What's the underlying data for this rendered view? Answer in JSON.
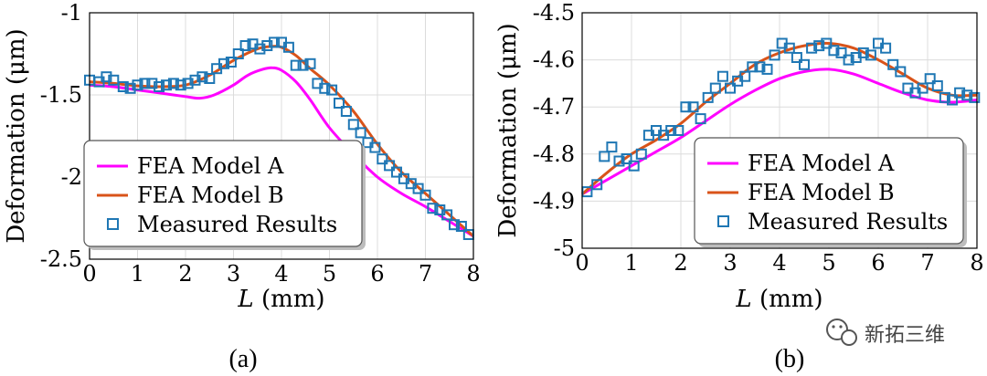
{
  "chart_data": [
    {
      "type": "line",
      "caption": "(a)",
      "xlabel_var": "L",
      "xlabel_unit": " (mm)",
      "ylabel": "Deformation (μm)",
      "xlim": [
        0,
        8
      ],
      "ylim": [
        -2.5,
        -1
      ],
      "x_ticks": [
        0,
        1,
        2,
        3,
        4,
        5,
        6,
        7,
        8
      ],
      "y_ticks": [
        -2.5,
        -2,
        -1.5,
        -1
      ],
      "y_tick_labels": [
        "-2.5",
        "-2",
        "-1.5",
        "-1"
      ],
      "grid": true,
      "legend_position": "lower-left",
      "series": [
        {
          "name": "FEA Model A",
          "kind": "line",
          "color": "#ff00ff",
          "x": [
            0,
            0.5,
            1,
            1.5,
            2,
            2.3,
            2.6,
            3,
            3.3,
            3.6,
            3.8,
            4.0,
            4.3,
            4.6,
            5,
            5.5,
            6,
            6.5,
            7,
            7.5,
            8
          ],
          "y": [
            -1.44,
            -1.45,
            -1.47,
            -1.49,
            -1.51,
            -1.52,
            -1.5,
            -1.44,
            -1.38,
            -1.345,
            -1.335,
            -1.35,
            -1.42,
            -1.53,
            -1.7,
            -1.86,
            -2.0,
            -2.1,
            -2.18,
            -2.27,
            -2.36
          ]
        },
        {
          "name": "FEA Model B",
          "kind": "line",
          "color": "#d95319",
          "x": [
            0,
            0.5,
            1,
            1.5,
            2,
            2.5,
            3,
            3.5,
            3.8,
            4.0,
            4.3,
            4.6,
            5,
            5.5,
            6,
            6.5,
            7,
            7.5,
            8
          ],
          "y": [
            -1.42,
            -1.43,
            -1.445,
            -1.45,
            -1.44,
            -1.38,
            -1.29,
            -1.22,
            -1.205,
            -1.21,
            -1.26,
            -1.34,
            -1.44,
            -1.6,
            -1.8,
            -1.97,
            -2.1,
            -2.23,
            -2.36
          ]
        },
        {
          "name": "Measured Results",
          "kind": "scatter",
          "color": "#1f77b4",
          "x": [
            0,
            0.2,
            0.35,
            0.5,
            0.7,
            0.85,
            1.0,
            1.15,
            1.3,
            1.45,
            1.6,
            1.75,
            1.9,
            2.05,
            2.2,
            2.35,
            2.5,
            2.65,
            2.8,
            2.95,
            3.1,
            3.25,
            3.4,
            3.55,
            3.7,
            3.85,
            4.0,
            4.15,
            4.3,
            4.45,
            4.6,
            4.75,
            4.9,
            5.05,
            5.2,
            5.35,
            5.5,
            5.65,
            5.8,
            5.95,
            6.1,
            6.25,
            6.4,
            6.55,
            6.7,
            6.85,
            7.0,
            7.15,
            7.3,
            7.45,
            7.6,
            7.75,
            7.9
          ],
          "y": [
            -1.41,
            -1.42,
            -1.39,
            -1.41,
            -1.45,
            -1.46,
            -1.44,
            -1.43,
            -1.43,
            -1.45,
            -1.44,
            -1.43,
            -1.44,
            -1.43,
            -1.41,
            -1.39,
            -1.4,
            -1.34,
            -1.31,
            -1.3,
            -1.25,
            -1.2,
            -1.19,
            -1.22,
            -1.2,
            -1.18,
            -1.18,
            -1.21,
            -1.32,
            -1.32,
            -1.31,
            -1.43,
            -1.46,
            -1.47,
            -1.55,
            -1.6,
            -1.68,
            -1.73,
            -1.79,
            -1.82,
            -1.89,
            -1.93,
            -1.97,
            -2.01,
            -2.04,
            -2.07,
            -2.11,
            -2.19,
            -2.2,
            -2.23,
            -2.29,
            -2.3,
            -2.35
          ]
        }
      ]
    },
    {
      "type": "line",
      "caption": "(b)",
      "xlabel_var": "L",
      "xlabel_unit": " (mm)",
      "ylabel": "Deformation (μm)",
      "xlim": [
        0,
        8
      ],
      "ylim": [
        -5,
        -4.5
      ],
      "x_ticks": [
        0,
        1,
        2,
        3,
        4,
        5,
        6,
        7,
        8
      ],
      "y_ticks": [
        -5,
        -4.9,
        -4.8,
        -4.7,
        -4.6,
        -4.5
      ],
      "y_tick_labels": [
        "-5",
        "-4.9",
        "-4.8",
        "-4.7",
        "-4.6",
        "-4.5"
      ],
      "grid": true,
      "legend_position": "lower-right",
      "series": [
        {
          "name": "FEA Model A",
          "kind": "line",
          "color": "#ff00ff",
          "x": [
            0,
            0.5,
            1,
            1.5,
            2,
            2.5,
            3,
            3.5,
            4,
            4.5,
            5,
            5.5,
            6,
            6.5,
            7,
            7.5,
            8
          ],
          "y": [
            -4.885,
            -4.855,
            -4.825,
            -4.795,
            -4.765,
            -4.73,
            -4.695,
            -4.665,
            -4.64,
            -4.625,
            -4.62,
            -4.63,
            -4.65,
            -4.67,
            -4.685,
            -4.69,
            -4.685
          ]
        },
        {
          "name": "FEA Model B",
          "kind": "line",
          "color": "#d95319",
          "x": [
            0,
            0.5,
            1,
            1.5,
            2,
            2.5,
            3,
            3.5,
            4,
            4.5,
            5,
            5.5,
            6,
            6.5,
            7,
            7.5,
            8
          ],
          "y": [
            -4.885,
            -4.84,
            -4.8,
            -4.77,
            -4.735,
            -4.69,
            -4.65,
            -4.61,
            -4.585,
            -4.57,
            -4.565,
            -4.575,
            -4.6,
            -4.63,
            -4.66,
            -4.675,
            -4.675
          ]
        },
        {
          "name": "Measured Results",
          "kind": "scatter",
          "color": "#1f77b4",
          "x": [
            0.1,
            0.3,
            0.45,
            0.6,
            0.75,
            0.9,
            1.05,
            1.2,
            1.35,
            1.5,
            1.65,
            1.8,
            1.95,
            2.1,
            2.25,
            2.4,
            2.55,
            2.7,
            2.85,
            3.0,
            3.15,
            3.3,
            3.45,
            3.6,
            3.75,
            3.9,
            4.05,
            4.2,
            4.35,
            4.5,
            4.65,
            4.8,
            4.95,
            5.1,
            5.25,
            5.4,
            5.55,
            5.7,
            5.85,
            6.0,
            6.15,
            6.3,
            6.45,
            6.6,
            6.75,
            6.9,
            7.05,
            7.2,
            7.35,
            7.5,
            7.65,
            7.8,
            7.95
          ],
          "y": [
            -4.88,
            -4.865,
            -4.805,
            -4.785,
            -4.815,
            -4.81,
            -4.825,
            -4.8,
            -4.76,
            -4.75,
            -4.76,
            -4.75,
            -4.75,
            -4.7,
            -4.7,
            -4.725,
            -4.68,
            -4.66,
            -4.635,
            -4.66,
            -4.645,
            -4.635,
            -4.615,
            -4.615,
            -4.62,
            -4.59,
            -4.565,
            -4.575,
            -4.595,
            -4.61,
            -4.575,
            -4.57,
            -4.565,
            -4.58,
            -4.585,
            -4.6,
            -4.595,
            -4.585,
            -4.59,
            -4.565,
            -4.575,
            -4.61,
            -4.625,
            -4.66,
            -4.67,
            -4.66,
            -4.64,
            -4.655,
            -4.68,
            -4.685,
            -4.67,
            -4.675,
            -4.68
          ]
        }
      ]
    }
  ],
  "watermark": {
    "icon": "wechat-icon",
    "text": "新拓三维"
  }
}
